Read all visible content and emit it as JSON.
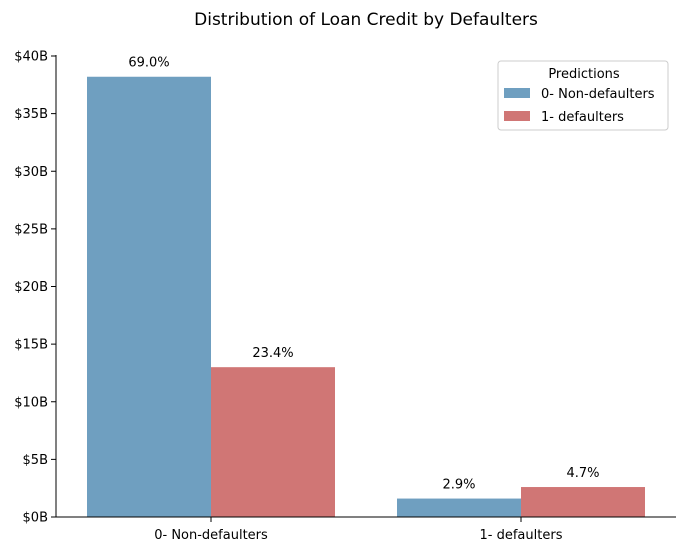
{
  "chart_data": {
    "type": "bar",
    "title": "Distribution of Loan Credit by Defaulters",
    "xlabel": "",
    "ylabel": "",
    "categories": [
      "0- Non-defaulters",
      "1- defaulters"
    ],
    "y_ticks": [
      "$0B",
      "$5B",
      "$10B",
      "$15B",
      "$20B",
      "$25B",
      "$30B",
      "$35B",
      "$40B"
    ],
    "ylim": [
      0,
      40
    ],
    "y_unit": "billions of dollars",
    "legend": {
      "title": "Predictions",
      "position": "top-right"
    },
    "grid": false,
    "series": [
      {
        "name": "0- Non-defaulters",
        "color": "#6f9fc0",
        "values": [
          38.2,
          1.6
        ],
        "labels": [
          "69.0%",
          "2.9%"
        ]
      },
      {
        "name": "1- defaulters",
        "color": "#d07675",
        "values": [
          13.0,
          2.6
        ],
        "labels": [
          "23.4%",
          "4.7%"
        ]
      }
    ]
  }
}
